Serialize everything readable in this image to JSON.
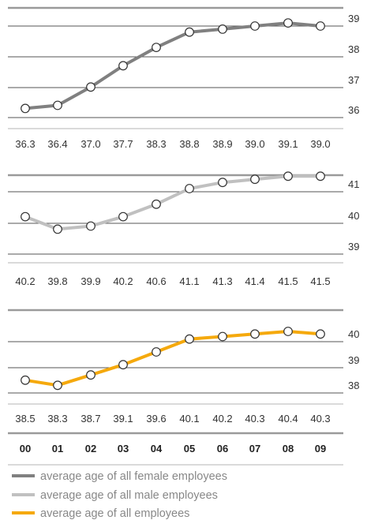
{
  "chart_data": [
    {
      "type": "line",
      "x": [
        "00",
        "01",
        "02",
        "03",
        "04",
        "05",
        "06",
        "07",
        "08",
        "09"
      ],
      "series": [
        {
          "name": "average age of all female employees",
          "values": [
            36.3,
            36.4,
            37.0,
            37.7,
            38.3,
            38.8,
            38.9,
            39.0,
            39.1,
            39.0
          ],
          "color": "#808080"
        }
      ],
      "data_labels": [
        "36.3",
        "36.4",
        "37.0",
        "37.7",
        "38.3",
        "38.8",
        "38.9",
        "39.0",
        "39.1",
        "39.0"
      ],
      "yticks": [
        36,
        37,
        38,
        39
      ],
      "ylim": [
        35.9,
        39.35
      ],
      "grid": true,
      "axis_side": "right"
    },
    {
      "type": "line",
      "x": [
        "00",
        "01",
        "02",
        "03",
        "04",
        "05",
        "06",
        "07",
        "08",
        "09"
      ],
      "series": [
        {
          "name": "average age of all male employees",
          "values": [
            40.2,
            39.8,
            39.9,
            40.2,
            40.6,
            41.1,
            41.3,
            41.4,
            41.5,
            41.5
          ],
          "color": "#c0c0c0"
        }
      ],
      "data_labels": [
        "40.2",
        "39.8",
        "39.9",
        "40.2",
        "40.6",
        "41.1",
        "41.3",
        "41.4",
        "41.5",
        "41.5"
      ],
      "yticks": [
        39,
        40,
        41
      ],
      "ylim": [
        38.7,
        41.9
      ],
      "grid": true,
      "axis_side": "right"
    },
    {
      "type": "line",
      "x": [
        "00",
        "01",
        "02",
        "03",
        "04",
        "05",
        "06",
        "07",
        "08",
        "09"
      ],
      "series": [
        {
          "name": "average age of all employees",
          "values": [
            38.5,
            38.3,
            38.7,
            39.1,
            39.6,
            40.1,
            40.2,
            40.3,
            40.4,
            40.3
          ],
          "color": "#f5a90d"
        }
      ],
      "data_labels": [
        "38.5",
        "38.3",
        "38.7",
        "39.1",
        "39.6",
        "40.1",
        "40.2",
        "40.3",
        "40.4",
        "40.3"
      ],
      "yticks": [
        38,
        39,
        40
      ],
      "ylim": [
        37.6,
        40.8
      ],
      "grid": true,
      "axis_side": "right"
    }
  ],
  "x_axis_labels": [
    "00",
    "01",
    "02",
    "03",
    "04",
    "05",
    "06",
    "07",
    "08",
    "09"
  ],
  "legend": [
    {
      "label": "average age of all female employees",
      "color": "#808080"
    },
    {
      "label": "average age of all male employees",
      "color": "#c0c0c0"
    },
    {
      "label": "average age of all employees",
      "color": "#f5a90d"
    }
  ]
}
